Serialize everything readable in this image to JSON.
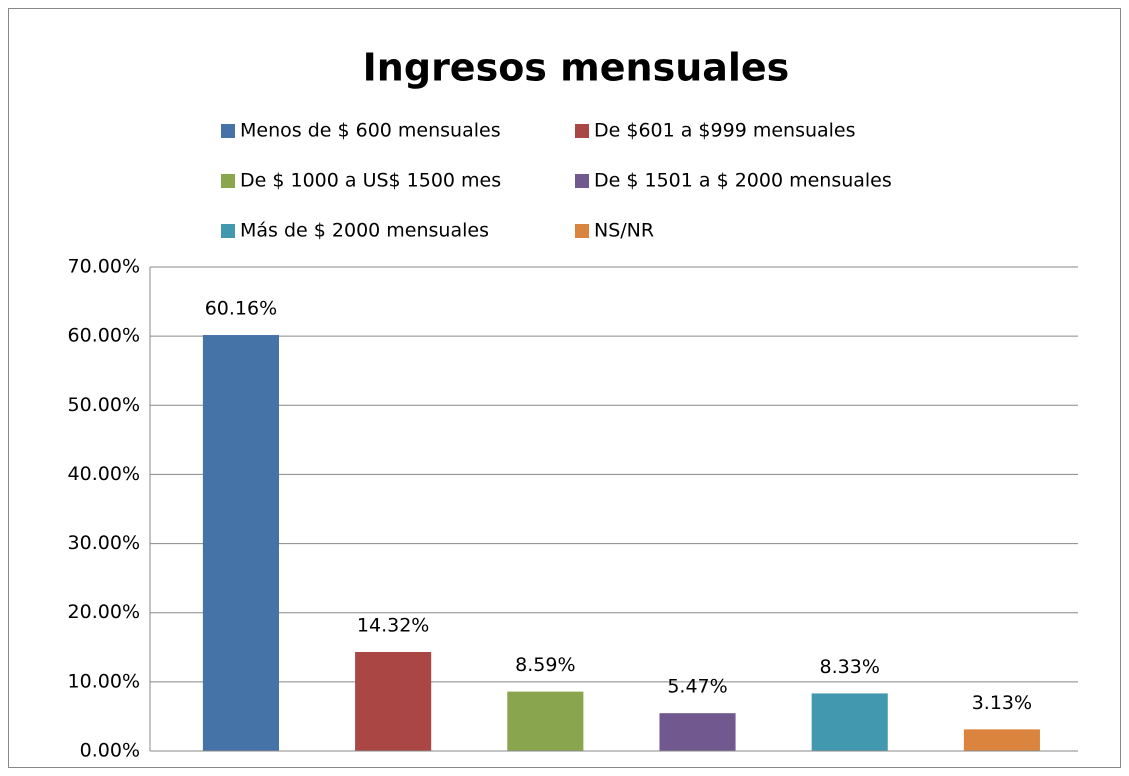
{
  "chart_data": {
    "type": "bar",
    "title": "Ingresos mensuales",
    "categories": [
      null
    ],
    "series": [
      {
        "name": "Menos de $ 600 mensuales",
        "color": "#4572a7",
        "values": [
          60.16
        ],
        "value_labels": [
          "60.16%"
        ]
      },
      {
        "name": "De $601 a $999 mensuales",
        "color": "#aa4643",
        "values": [
          14.32
        ],
        "value_labels": [
          "14.32%"
        ]
      },
      {
        "name": "De $ 1000 a US$ 1500 mes",
        "color": "#89a54e",
        "values": [
          8.59
        ],
        "value_labels": [
          "8.59%"
        ]
      },
      {
        "name": "De $ 1501 a $ 2000 mensuales",
        "color": "#71588f",
        "values": [
          5.47
        ],
        "value_labels": [
          "5.47%"
        ]
      },
      {
        "name": "Más de $ 2000 mensuales",
        "color": "#4198af",
        "values": [
          8.33
        ],
        "value_labels": [
          "8.33%"
        ]
      },
      {
        "name": "NS/NR",
        "color": "#db843d",
        "values": [
          3.13
        ],
        "value_labels": [
          "3.13%"
        ]
      }
    ],
    "ylim": [
      0,
      70
    ],
    "yticks": [
      {
        "value": 0,
        "label": "0.00%"
      },
      {
        "value": 10,
        "label": "10.00%"
      },
      {
        "value": 20,
        "label": "20.00%"
      },
      {
        "value": 30,
        "label": "30.00%"
      },
      {
        "value": 40,
        "label": "40.00%"
      },
      {
        "value": 50,
        "label": "50.00%"
      },
      {
        "value": 60,
        "label": "60.00%"
      },
      {
        "value": 70,
        "label": "70.00%"
      }
    ],
    "grid": true,
    "legend": "top"
  }
}
